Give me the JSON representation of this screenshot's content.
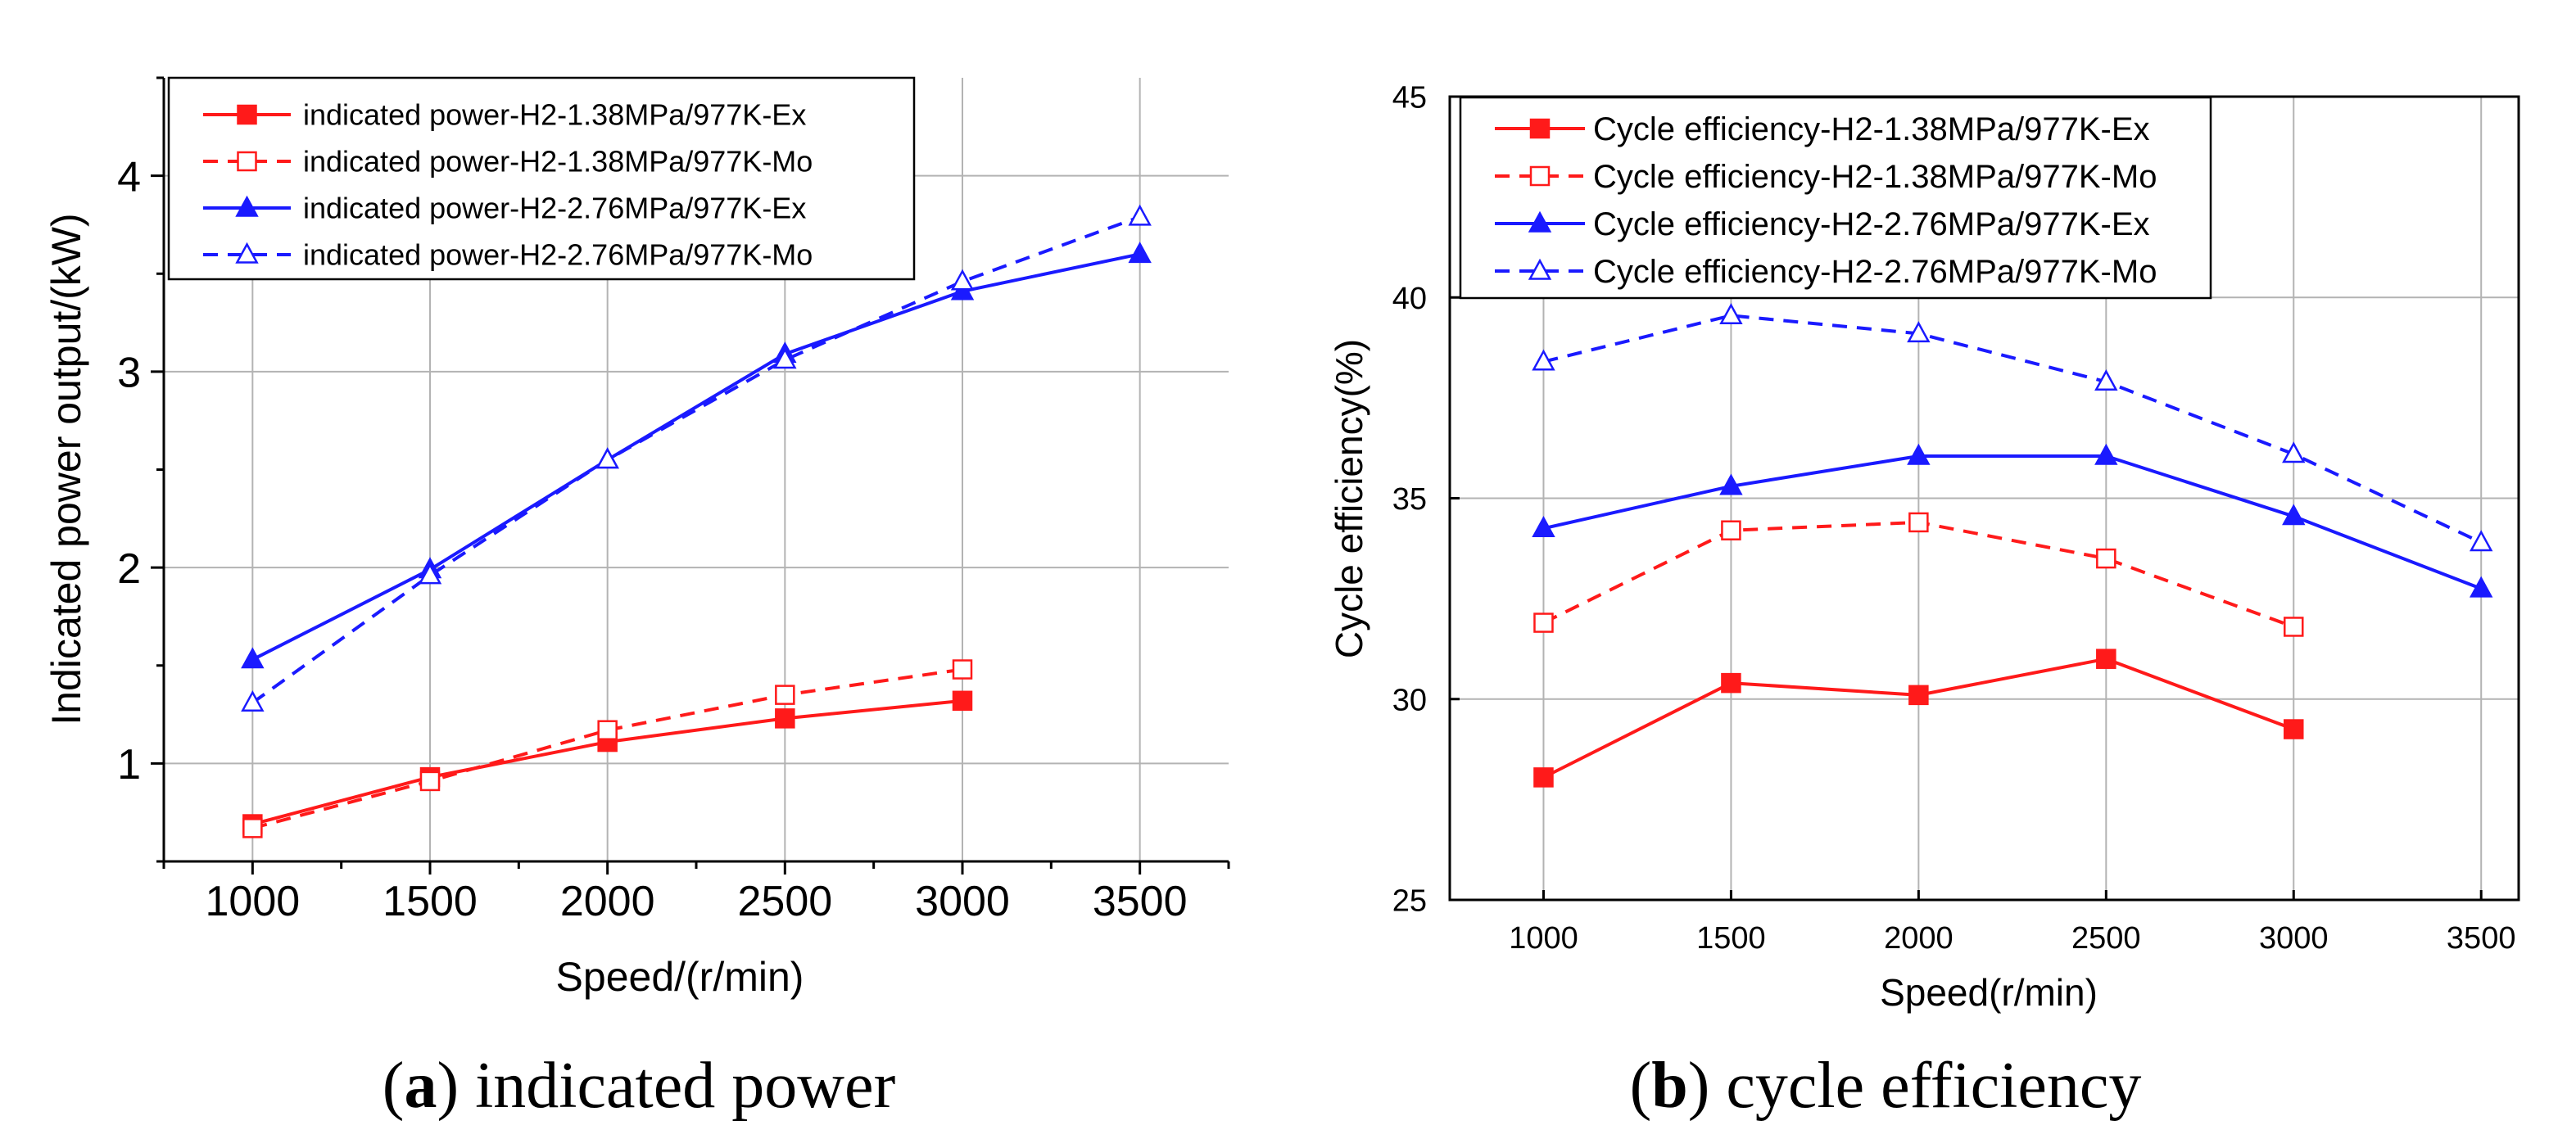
{
  "chart_data": [
    {
      "type": "line",
      "xlabel": "Speed/(r/min)",
      "ylabel": "Indicated power output/(kW)",
      "xlim": [
        750,
        3750
      ],
      "ylim": [
        0.5,
        4.5
      ],
      "xticks": [
        1000,
        1500,
        2000,
        2500,
        3000,
        3500
      ],
      "yticks": [
        1,
        2,
        3,
        4
      ],
      "grid": true,
      "legend_position": "top-left",
      "caption_letter": "a",
      "caption_text": "indicated power",
      "series": [
        {
          "name": "indicated power-H2-1.38MPa/977K-Ex",
          "color": "#ff1a1a",
          "dashed": false,
          "marker": "square-filled",
          "x": [
            1000,
            1500,
            2000,
            2500,
            3000
          ],
          "y": [
            0.69,
            0.93,
            1.11,
            1.23,
            1.32
          ]
        },
        {
          "name": "indicated power-H2-1.38MPa/977K-Mo",
          "color": "#ff1a1a",
          "dashed": true,
          "marker": "square-open",
          "x": [
            1000,
            1500,
            2000,
            2500,
            3000
          ],
          "y": [
            0.67,
            0.91,
            1.17,
            1.35,
            1.48
          ]
        },
        {
          "name": "indicated power-H2-2.76MPa/977K-Ex",
          "color": "#1a1aff",
          "dashed": false,
          "marker": "triangle-filled",
          "x": [
            1000,
            1500,
            2000,
            2500,
            3000,
            3500
          ],
          "y": [
            1.53,
            1.99,
            2.55,
            3.09,
            3.41,
            3.6
          ]
        },
        {
          "name": "indicated power-H2-2.76MPa/977K-Mo",
          "color": "#1a1aff",
          "dashed": true,
          "marker": "triangle-open",
          "x": [
            1000,
            1500,
            2000,
            2500,
            3000,
            3500
          ],
          "y": [
            1.31,
            1.96,
            2.55,
            3.06,
            3.46,
            3.79
          ]
        }
      ]
    },
    {
      "type": "line",
      "xlabel": "Speed(r/min)",
      "ylabel": "Cycle efficiency(%)",
      "xlim": [
        750,
        3600
      ],
      "ylim": [
        25,
        45
      ],
      "xticks": [
        1000,
        1500,
        2000,
        2500,
        3000,
        3500
      ],
      "yticks": [
        25,
        30,
        35,
        40,
        45
      ],
      "grid": true,
      "legend_position": "top-left",
      "caption_letter": "b",
      "caption_text": "cycle efficiency",
      "series": [
        {
          "name": "Cycle efficiency-H2-1.38MPa/977K-Ex",
          "color": "#ff1a1a",
          "dashed": false,
          "marker": "square-filled",
          "x": [
            1000,
            1500,
            2000,
            2500,
            3000
          ],
          "y": [
            28.05,
            30.4,
            30.1,
            31.0,
            29.25
          ]
        },
        {
          "name": "Cycle efficiency-H2-1.38MPa/977K-Mo",
          "color": "#ff1a1a",
          "dashed": true,
          "marker": "square-open",
          "x": [
            1000,
            1500,
            2000,
            2500,
            3000
          ],
          "y": [
            31.9,
            34.2,
            34.4,
            33.5,
            31.8
          ]
        },
        {
          "name": "Cycle efficiency-H2-2.76MPa/977K-Ex",
          "color": "#1a1aff",
          "dashed": false,
          "marker": "triangle-filled",
          "x": [
            1000,
            1500,
            2000,
            2500,
            3000,
            3500
          ],
          "y": [
            34.25,
            35.3,
            36.05,
            36.05,
            34.55,
            32.75
          ]
        },
        {
          "name": "Cycle efficiency-H2-2.76MPa/977K-Mo",
          "color": "#1a1aff",
          "dashed": true,
          "marker": "triangle-open",
          "x": [
            1000,
            1500,
            2000,
            2500,
            3000,
            3500
          ],
          "y": [
            38.4,
            39.55,
            39.1,
            37.9,
            36.1,
            33.9
          ]
        }
      ]
    }
  ]
}
